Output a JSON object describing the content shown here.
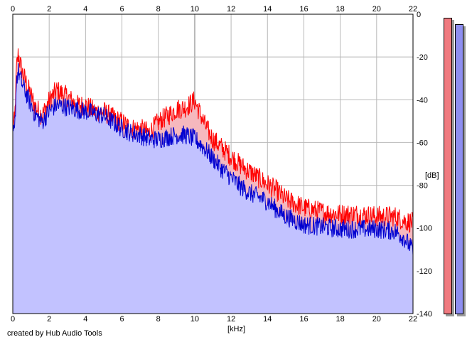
{
  "credit": "created by Hub Audio Tools",
  "colors": {
    "left_line": "#ff0000",
    "right_line": "#0000d0",
    "left_fill": "#f6b8be",
    "right_fill": "#c2c2ff",
    "meter_left": "#f07a80",
    "meter_right": "#8e8ef0",
    "grid": "#b8b8b8"
  },
  "chart_data": {
    "type": "area",
    "xlabel": "[kHz]",
    "ylabel": "[dB]",
    "xlim": [
      0,
      22
    ],
    "ylim": [
      -140,
      0
    ],
    "x_ticks": [
      0,
      2,
      4,
      6,
      8,
      10,
      12,
      14,
      16,
      18,
      20,
      22
    ],
    "y_ticks": [
      0,
      -20,
      -40,
      -60,
      -80,
      -100,
      -120,
      -140
    ],
    "grid": true,
    "series": [
      {
        "color": "#ff0000",
        "x": [
          0.1,
          0.2,
          0.3,
          0.5,
          0.8,
          1.2,
          1.6,
          2.0,
          2.4,
          3.0,
          3.5,
          4.0,
          4.5,
          5.0,
          5.5,
          6.0,
          6.5,
          7.0,
          7.5,
          8.0,
          8.5,
          9.0,
          9.5,
          10.0,
          10.3,
          10.6,
          11.0,
          11.5,
          12.0,
          12.5,
          13.0,
          13.5,
          14.0,
          14.5,
          15.0,
          15.5,
          16.0,
          17.0,
          18.0,
          19.0,
          20.0,
          21.0,
          21.5,
          22.0
        ],
        "y": [
          -50,
          -25,
          -18,
          -26,
          -33,
          -42,
          -47,
          -40,
          -35,
          -38,
          -42,
          -42,
          -45,
          -45,
          -48,
          -50,
          -53,
          -53,
          -55,
          -50,
          -47,
          -44,
          -43,
          -40,
          -46,
          -52,
          -58,
          -62,
          -66,
          -70,
          -73,
          -76,
          -79,
          -82,
          -86,
          -88,
          -90,
          -92,
          -93,
          -93,
          -94,
          -94,
          -96,
          -97
        ]
      },
      {
        "color": "#0000d0",
        "x": [
          0.1,
          0.2,
          0.3,
          0.5,
          0.8,
          1.2,
          1.6,
          2.0,
          2.4,
          3.0,
          3.5,
          4.0,
          4.5,
          5.0,
          5.5,
          6.0,
          6.5,
          7.0,
          7.5,
          8.0,
          8.5,
          9.0,
          9.5,
          10.0,
          10.3,
          10.6,
          11.0,
          11.5,
          12.0,
          12.5,
          13.0,
          13.5,
          14.0,
          14.5,
          15.0,
          15.5,
          16.0,
          17.0,
          18.0,
          19.0,
          20.0,
          21.0,
          21.5,
          22.0
        ],
        "y": [
          -55,
          -30,
          -26,
          -32,
          -38,
          -46,
          -50,
          -45,
          -42,
          -43,
          -44,
          -45,
          -46,
          -47,
          -50,
          -53,
          -55,
          -56,
          -58,
          -58,
          -57,
          -56,
          -56,
          -58,
          -60,
          -63,
          -67,
          -72,
          -76,
          -80,
          -83,
          -85,
          -87,
          -91,
          -94,
          -96,
          -98,
          -99,
          -100,
          -100,
          -100,
          -101,
          -104,
          -110
        ]
      }
    ]
  },
  "meters": [
    {
      "level_db": 0,
      "color": "#f07a80"
    },
    {
      "level_db": -3,
      "color": "#8e8ef0"
    }
  ]
}
